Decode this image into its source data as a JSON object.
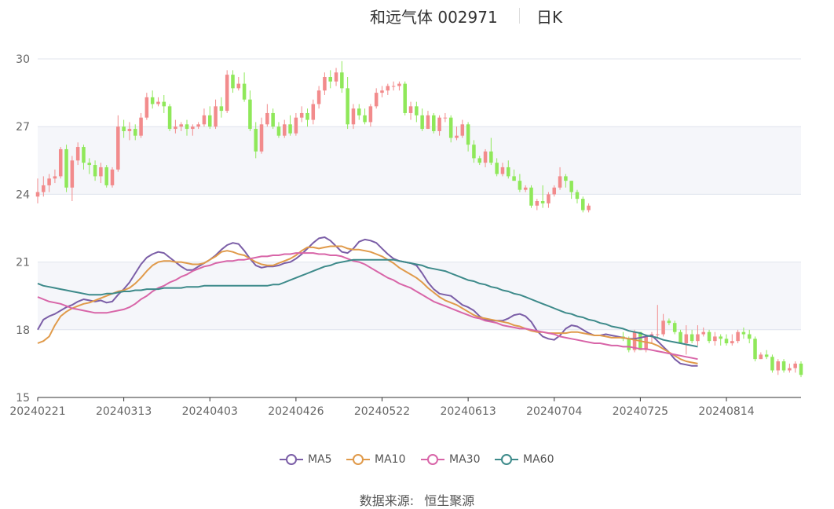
{
  "header": {
    "title": "和远气体 002971",
    "period": "日K"
  },
  "source": {
    "label": "数据来源:",
    "value": "恒生聚源"
  },
  "colors": {
    "up": "#f28b8c",
    "down": "#8fe85a",
    "MA5": "#7b5ea7",
    "MA10": "#e09a4a",
    "MA30": "#d865a8",
    "MA60": "#3d8a8a",
    "band": "#f5f6fa",
    "grid": "#e0e4ee"
  },
  "chart_data": {
    "type": "candlestick",
    "title": "和远气体 002971 日K",
    "ylim": [
      15,
      30
    ],
    "yticks": [
      "15",
      "18",
      "21",
      "24",
      "27",
      "30"
    ],
    "xticks": [
      "20240221",
      "20240313",
      "20240403",
      "20240426",
      "20240522",
      "20240613",
      "20240704",
      "20240725",
      "20240814"
    ],
    "xtick_index": [
      0,
      15,
      30,
      45,
      60,
      75,
      90,
      105,
      120
    ],
    "legend": [
      "MA5",
      "MA10",
      "MA30",
      "MA60"
    ],
    "candles": [
      [
        23.9,
        24.1,
        24.7,
        23.6
      ],
      [
        24.1,
        24.4,
        24.8,
        23.9
      ],
      [
        24.4,
        24.7,
        24.9,
        24.1
      ],
      [
        24.7,
        24.8,
        25.1,
        24.5
      ],
      [
        24.8,
        26.0,
        26.1,
        24.7
      ],
      [
        26.0,
        24.3,
        26.2,
        24.1
      ],
      [
        24.3,
        25.5,
        25.7,
        23.7
      ],
      [
        25.5,
        26.1,
        26.3,
        25.3
      ],
      [
        26.1,
        25.4,
        26.2,
        25.1
      ],
      [
        25.4,
        25.3,
        25.6,
        24.9
      ],
      [
        25.3,
        24.8,
        25.5,
        24.6
      ],
      [
        24.8,
        25.2,
        25.4,
        24.5
      ],
      [
        25.2,
        24.4,
        25.3,
        24.3
      ],
      [
        24.4,
        25.1,
        25.2,
        24.3
      ],
      [
        25.1,
        27.0,
        27.5,
        25.0
      ],
      [
        27.0,
        26.8,
        27.3,
        26.5
      ],
      [
        26.8,
        26.9,
        27.2,
        26.4
      ],
      [
        26.9,
        26.6,
        27.1,
        26.4
      ],
      [
        26.6,
        27.4,
        27.6,
        26.5
      ],
      [
        27.4,
        28.3,
        28.5,
        27.3
      ],
      [
        28.3,
        28.0,
        28.6,
        27.8
      ],
      [
        28.0,
        28.1,
        28.3,
        27.9
      ],
      [
        28.1,
        27.9,
        28.4,
        27.6
      ],
      [
        27.9,
        26.9,
        28.0,
        26.8
      ],
      [
        26.9,
        27.0,
        27.3,
        26.7
      ],
      [
        27.0,
        27.1,
        27.2,
        26.8
      ],
      [
        27.1,
        26.9,
        27.3,
        26.6
      ],
      [
        26.9,
        27.0,
        27.1,
        26.6
      ],
      [
        27.0,
        27.1,
        27.2,
        26.9
      ],
      [
        27.1,
        27.5,
        27.8,
        27.0
      ],
      [
        27.5,
        27.0,
        27.9,
        26.9
      ],
      [
        27.0,
        27.9,
        28.2,
        26.9
      ],
      [
        27.9,
        27.7,
        28.3,
        27.4
      ],
      [
        27.7,
        29.3,
        29.5,
        27.6
      ],
      [
        29.3,
        28.7,
        29.5,
        28.5
      ],
      [
        28.7,
        28.9,
        29.2,
        28.6
      ],
      [
        28.9,
        28.2,
        29.4,
        28.1
      ],
      [
        28.2,
        26.9,
        28.6,
        26.8
      ],
      [
        26.9,
        25.9,
        27.2,
        25.6
      ],
      [
        25.9,
        27.1,
        27.4,
        25.8
      ],
      [
        27.1,
        27.6,
        28.0,
        27.0
      ],
      [
        27.6,
        27.0,
        27.8,
        26.9
      ],
      [
        27.0,
        26.6,
        27.2,
        26.5
      ],
      [
        26.6,
        27.1,
        27.3,
        26.5
      ],
      [
        27.1,
        26.7,
        27.5,
        26.6
      ],
      [
        26.7,
        27.4,
        27.6,
        26.6
      ],
      [
        27.4,
        27.6,
        27.9,
        27.2
      ],
      [
        27.6,
        27.3,
        27.8,
        27.0
      ],
      [
        27.3,
        28.0,
        28.2,
        27.1
      ],
      [
        28.0,
        28.6,
        28.8,
        27.8
      ],
      [
        28.6,
        29.2,
        29.4,
        28.4
      ],
      [
        29.2,
        29.0,
        29.5,
        28.7
      ],
      [
        29.0,
        29.4,
        29.6,
        28.8
      ],
      [
        29.4,
        28.7,
        29.9,
        28.5
      ],
      [
        28.7,
        27.1,
        29.2,
        26.9
      ],
      [
        27.1,
        27.8,
        28.0,
        26.9
      ],
      [
        27.8,
        27.5,
        28.0,
        27.3
      ],
      [
        27.5,
        27.2,
        27.8,
        27.1
      ],
      [
        27.2,
        27.9,
        28.0,
        27.0
      ],
      [
        27.9,
        28.5,
        28.7,
        27.8
      ],
      [
        28.5,
        28.6,
        28.8,
        28.3
      ],
      [
        28.6,
        28.8,
        28.9,
        28.4
      ],
      [
        28.8,
        28.8,
        29.0,
        28.6
      ],
      [
        28.8,
        28.9,
        29.0,
        28.6
      ],
      [
        28.9,
        27.6,
        29.0,
        27.5
      ],
      [
        27.6,
        27.9,
        28.1,
        27.3
      ],
      [
        27.9,
        27.5,
        28.1,
        27.2
      ],
      [
        27.5,
        26.9,
        27.8,
        26.8
      ],
      [
        26.9,
        27.5,
        27.7,
        26.9
      ],
      [
        27.5,
        26.8,
        27.6,
        26.7
      ],
      [
        26.8,
        27.4,
        27.5,
        26.6
      ],
      [
        27.4,
        27.4,
        27.6,
        27.2
      ],
      [
        27.4,
        26.5,
        27.5,
        26.3
      ],
      [
        26.5,
        26.6,
        27.0,
        26.4
      ],
      [
        26.6,
        27.1,
        27.3,
        26.5
      ],
      [
        27.1,
        26.2,
        27.2,
        25.9
      ],
      [
        26.2,
        25.6,
        26.4,
        25.4
      ],
      [
        25.6,
        25.4,
        25.7,
        25.3
      ],
      [
        25.4,
        25.9,
        26.0,
        25.2
      ],
      [
        25.9,
        25.4,
        26.5,
        25.3
      ],
      [
        25.4,
        24.9,
        25.6,
        24.8
      ],
      [
        24.9,
        25.2,
        25.4,
        24.8
      ],
      [
        25.2,
        24.8,
        25.5,
        24.7
      ],
      [
        24.8,
        24.6,
        25.1,
        24.6
      ],
      [
        24.6,
        24.2,
        24.9,
        24.1
      ],
      [
        24.2,
        24.3,
        24.4,
        24.1
      ],
      [
        24.3,
        23.5,
        24.4,
        23.4
      ],
      [
        23.5,
        23.7,
        23.8,
        23.3
      ],
      [
        23.7,
        23.6,
        24.4,
        23.4
      ],
      [
        23.6,
        24.0,
        24.1,
        23.4
      ],
      [
        24.0,
        24.3,
        24.4,
        23.9
      ],
      [
        24.3,
        24.8,
        25.2,
        24.2
      ],
      [
        24.8,
        24.6,
        24.9,
        24.3
      ],
      [
        24.6,
        24.1,
        24.6,
        23.8
      ],
      [
        24.1,
        23.8,
        24.2,
        23.6
      ],
      [
        23.8,
        23.3,
        23.9,
        23.2
      ],
      [
        23.3,
        23.5,
        23.6,
        23.2
      ],
      null,
      null,
      null,
      null,
      null,
      [
        17.7,
        17.6,
        17.9,
        17.5
      ],
      [
        17.6,
        17.1,
        17.7,
        17.0
      ],
      [
        17.1,
        17.9,
        18.0,
        17.0
      ],
      [
        17.9,
        17.1,
        17.9,
        17.1
      ],
      [
        17.1,
        17.7,
        17.8,
        17.0
      ],
      [
        17.7,
        17.8,
        17.9,
        17.4
      ],
      [
        17.8,
        17.8,
        19.1,
        17.6
      ],
      [
        17.8,
        18.4,
        18.7,
        17.7
      ],
      [
        18.4,
        18.3,
        18.5,
        18.2
      ],
      [
        18.3,
        17.9,
        18.4,
        17.8
      ],
      [
        17.9,
        17.4,
        18.0,
        17.4
      ],
      [
        17.4,
        17.8,
        18.2,
        16.9
      ],
      [
        17.8,
        17.5,
        18.0,
        17.4
      ],
      [
        17.5,
        17.8,
        18.2,
        17.3
      ],
      [
        17.8,
        17.9,
        18.1,
        17.7
      ],
      [
        17.9,
        17.5,
        18.0,
        17.4
      ],
      [
        17.5,
        17.7,
        17.9,
        17.3
      ],
      [
        17.7,
        17.6,
        17.8,
        17.3
      ],
      [
        17.6,
        17.4,
        17.8,
        17.3
      ],
      [
        17.4,
        17.5,
        17.8,
        17.3
      ],
      [
        17.5,
        17.9,
        18.0,
        17.4
      ],
      [
        17.9,
        17.8,
        18.1,
        17.6
      ],
      [
        17.8,
        17.6,
        18.0,
        17.4
      ],
      [
        17.6,
        16.7,
        17.7,
        16.6
      ],
      [
        16.7,
        16.9,
        17.0,
        16.7
      ],
      [
        16.9,
        16.8,
        17.1,
        16.7
      ],
      [
        16.8,
        16.2,
        16.9,
        16.1
      ],
      [
        16.2,
        16.6,
        16.7,
        16.0
      ],
      [
        16.6,
        16.2,
        16.7,
        16.1
      ],
      [
        16.2,
        16.3,
        16.5,
        16.1
      ],
      [
        16.3,
        16.5,
        16.6,
        16.1
      ],
      [
        16.5,
        16.0,
        16.6,
        15.9
      ]
    ],
    "series": [
      {
        "name": "MA5",
        "values": [
          18.0,
          18.45,
          18.6,
          18.7,
          18.85,
          19.0,
          19.1,
          19.25,
          19.35,
          19.3,
          19.25,
          19.3,
          19.2,
          19.25,
          19.55,
          19.8,
          20.1,
          20.5,
          20.9,
          21.2,
          21.35,
          21.45,
          21.4,
          21.2,
          21.0,
          20.8,
          20.65,
          20.65,
          20.8,
          20.95,
          21.1,
          21.3,
          21.55,
          21.75,
          21.85,
          21.8,
          21.5,
          21.15,
          20.85,
          20.75,
          20.8,
          20.8,
          20.85,
          20.95,
          21.0,
          21.15,
          21.35,
          21.6,
          21.85,
          22.05,
          22.1,
          21.95,
          21.7,
          21.45,
          21.4,
          21.6,
          21.9,
          22.0,
          21.95,
          21.85,
          21.6,
          21.35,
          21.15,
          21.05,
          21.0,
          20.95,
          20.85,
          20.5,
          20.1,
          19.8,
          19.6,
          19.55,
          19.5,
          19.3,
          19.1,
          19.0,
          18.85,
          18.6,
          18.45,
          18.4,
          18.4,
          18.4,
          18.5,
          18.65,
          18.7,
          18.6,
          18.35,
          17.95,
          17.7,
          17.6,
          17.55,
          17.75,
          18.05,
          18.2,
          18.15,
          18.0,
          17.85,
          17.75,
          17.75,
          17.8,
          17.75,
          17.7,
          17.65,
          17.6,
          17.6,
          17.65,
          17.7,
          17.75,
          17.5,
          17.25,
          17.0,
          16.7,
          16.5,
          16.45,
          16.4,
          16.4
        ]
      },
      {
        "name": "MA10",
        "values": [
          17.4,
          17.5,
          17.7,
          18.2,
          18.6,
          18.8,
          18.95,
          19.05,
          19.15,
          19.2,
          19.3,
          19.4,
          19.5,
          19.6,
          19.7,
          19.75,
          19.85,
          20.05,
          20.3,
          20.6,
          20.85,
          21.0,
          21.05,
          21.05,
          21.0,
          21.0,
          20.95,
          20.9,
          20.9,
          20.95,
          21.1,
          21.25,
          21.45,
          21.5,
          21.45,
          21.35,
          21.3,
          21.15,
          21.0,
          20.9,
          20.85,
          20.85,
          20.95,
          21.05,
          21.15,
          21.3,
          21.5,
          21.65,
          21.65,
          21.6,
          21.65,
          21.7,
          21.7,
          21.7,
          21.6,
          21.55,
          21.55,
          21.5,
          21.45,
          21.35,
          21.25,
          21.1,
          20.95,
          20.75,
          20.6,
          20.45,
          20.3,
          20.1,
          19.85,
          19.65,
          19.45,
          19.3,
          19.2,
          19.1,
          18.95,
          18.8,
          18.65,
          18.55,
          18.5,
          18.45,
          18.4,
          18.35,
          18.3,
          18.2,
          18.15,
          18.05,
          17.95,
          17.9,
          17.9,
          17.85,
          17.85,
          17.85,
          17.85,
          17.9,
          17.9,
          17.85,
          17.8,
          17.75,
          17.75,
          17.7,
          17.65,
          17.65,
          17.65,
          17.6,
          17.55,
          17.5,
          17.45,
          17.4,
          17.3,
          17.15,
          17.0,
          16.85,
          16.7,
          16.6,
          16.55,
          16.5
        ]
      },
      {
        "name": "MA30",
        "values": [
          19.45,
          19.35,
          19.25,
          19.2,
          19.15,
          19.05,
          18.95,
          18.9,
          18.85,
          18.8,
          18.75,
          18.75,
          18.75,
          18.8,
          18.85,
          18.9,
          19.0,
          19.15,
          19.35,
          19.5,
          19.7,
          19.85,
          19.95,
          20.1,
          20.2,
          20.35,
          20.45,
          20.6,
          20.7,
          20.8,
          20.85,
          20.95,
          21.0,
          21.05,
          21.05,
          21.1,
          21.1,
          21.15,
          21.2,
          21.25,
          21.25,
          21.3,
          21.3,
          21.35,
          21.35,
          21.4,
          21.4,
          21.4,
          21.4,
          21.35,
          21.35,
          21.3,
          21.3,
          21.25,
          21.15,
          21.05,
          21.0,
          20.9,
          20.75,
          20.6,
          20.45,
          20.3,
          20.2,
          20.05,
          19.95,
          19.85,
          19.7,
          19.55,
          19.4,
          19.25,
          19.15,
          19.05,
          18.95,
          18.85,
          18.75,
          18.65,
          18.55,
          18.5,
          18.4,
          18.35,
          18.3,
          18.2,
          18.15,
          18.1,
          18.05,
          18.05,
          18.0,
          17.95,
          17.9,
          17.85,
          17.8,
          17.7,
          17.65,
          17.6,
          17.55,
          17.5,
          17.45,
          17.4,
          17.4,
          17.35,
          17.3,
          17.3,
          17.25,
          17.25,
          17.2,
          17.15,
          17.15,
          17.1,
          17.05,
          17.0,
          16.95,
          16.9,
          16.85,
          16.8,
          16.75,
          16.7
        ]
      },
      {
        "name": "MA60",
        "values": [
          20.05,
          19.95,
          19.9,
          19.85,
          19.8,
          19.75,
          19.7,
          19.65,
          19.6,
          19.55,
          19.55,
          19.55,
          19.6,
          19.6,
          19.65,
          19.7,
          19.7,
          19.75,
          19.75,
          19.8,
          19.8,
          19.8,
          19.85,
          19.85,
          19.85,
          19.85,
          19.9,
          19.9,
          19.9,
          19.95,
          19.95,
          19.95,
          19.95,
          19.95,
          19.95,
          19.95,
          19.95,
          19.95,
          19.95,
          19.95,
          19.95,
          20.0,
          20.0,
          20.1,
          20.2,
          20.3,
          20.4,
          20.5,
          20.6,
          20.7,
          20.8,
          20.85,
          20.95,
          21.0,
          21.05,
          21.1,
          21.1,
          21.1,
          21.1,
          21.1,
          21.1,
          21.1,
          21.1,
          21.05,
          21.0,
          20.95,
          20.9,
          20.85,
          20.75,
          20.7,
          20.65,
          20.6,
          20.5,
          20.4,
          20.3,
          20.2,
          20.15,
          20.05,
          20.0,
          19.9,
          19.85,
          19.75,
          19.7,
          19.6,
          19.55,
          19.45,
          19.35,
          19.25,
          19.15,
          19.05,
          18.95,
          18.85,
          18.75,
          18.7,
          18.6,
          18.55,
          18.45,
          18.4,
          18.3,
          18.25,
          18.15,
          18.1,
          18.05,
          17.95,
          17.9,
          17.85,
          17.75,
          17.7,
          17.65,
          17.55,
          17.5,
          17.45,
          17.4,
          17.35,
          17.3,
          17.25
        ]
      }
    ]
  }
}
